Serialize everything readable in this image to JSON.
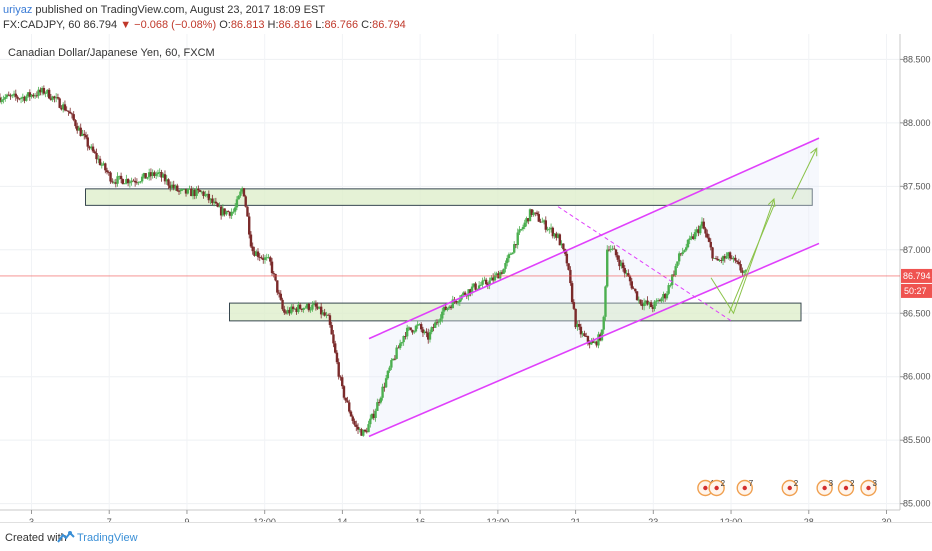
{
  "header": {
    "author": "uriyaz",
    "published_text": "published on TradingView.com, August 23, 2017 18:09 EST",
    "symbol": "FX:CADJPY, 60",
    "last": "86.794",
    "change": "▼ −0.068 (−0.08%)",
    "o_label": "O:",
    "o": "86.813",
    "h_label": "H:",
    "h": "86.816",
    "l_label": "L:",
    "l": "86.766",
    "c_label": "C:",
    "c": "86.794"
  },
  "footer": {
    "created_with": "Created with",
    "brand": "TradingView"
  },
  "colors": {
    "up": "#4caf50",
    "down": "#7a2a2a",
    "channel": "#e040fb",
    "zone_fill": "#dcedc8",
    "zone_stroke": "#37474f",
    "arrow": "#8bc34a",
    "price_tag": "#ef5350"
  },
  "chart_data": {
    "type": "candlestick",
    "title": "Canadian Dollar/Japanese Yen, 60, FXCM",
    "ylim": [
      84.95,
      88.7
    ],
    "y_ticks": [
      "85.000",
      "85.500",
      "86.000",
      "86.500",
      "87.000",
      "87.500",
      "88.000",
      "88.500"
    ],
    "x_ticks": [
      "3",
      "7",
      "9",
      "12:00",
      "14",
      "16",
      "12:00",
      "21",
      "23",
      "12:00",
      "28",
      "30"
    ],
    "last_price": "86.794",
    "countdown": "50:27",
    "price_path": [
      [
        0.0,
        88.2
      ],
      [
        1.0,
        88.2
      ],
      [
        2.0,
        88.25
      ],
      [
        3.0,
        88.1
      ],
      [
        4.0,
        87.8
      ],
      [
        5.0,
        87.55
      ],
      [
        6.0,
        87.55
      ],
      [
        7.0,
        87.6
      ],
      [
        8.0,
        87.45
      ],
      [
        9.0,
        87.45
      ],
      [
        9.8,
        87.3
      ],
      [
        10.4,
        87.3
      ],
      [
        10.8,
        87.5
      ],
      [
        11.2,
        87.0
      ],
      [
        12.0,
        86.9
      ],
      [
        12.6,
        86.5
      ],
      [
        13.4,
        86.55
      ],
      [
        14.0,
        86.55
      ],
      [
        14.6,
        86.45
      ],
      [
        15.2,
        85.9
      ],
      [
        15.8,
        85.6
      ],
      [
        16.2,
        85.55
      ],
      [
        16.6,
        85.7
      ],
      [
        17.4,
        86.1
      ],
      [
        18.0,
        86.35
      ],
      [
        18.6,
        86.4
      ],
      [
        19.0,
        86.3
      ],
      [
        19.6,
        86.5
      ],
      [
        20.2,
        86.6
      ],
      [
        21.0,
        86.7
      ],
      [
        21.8,
        86.75
      ],
      [
        22.4,
        86.85
      ],
      [
        23.0,
        87.1
      ],
      [
        23.6,
        87.3
      ],
      [
        24.2,
        87.2
      ],
      [
        24.8,
        87.1
      ],
      [
        25.2,
        86.9
      ],
      [
        25.6,
        86.4
      ],
      [
        26.0,
        86.3
      ],
      [
        26.4,
        86.25
      ],
      [
        26.8,
        86.35
      ],
      [
        27.0,
        87.05
      ],
      [
        27.4,
        86.95
      ],
      [
        28.0,
        86.75
      ],
      [
        28.4,
        86.6
      ],
      [
        29.0,
        86.55
      ],
      [
        29.6,
        86.65
      ],
      [
        30.2,
        86.95
      ],
      [
        30.8,
        87.1
      ],
      [
        31.2,
        87.2
      ],
      [
        31.8,
        86.9
      ],
      [
        32.4,
        86.95
      ],
      [
        32.9,
        86.85
      ],
      [
        33.2,
        86.8
      ]
    ],
    "channel_upper": [
      [
        16.4,
        86.3
      ],
      [
        36.4,
        87.88
      ]
    ],
    "channel_lower": [
      [
        16.4,
        85.53
      ],
      [
        36.4,
        87.05
      ]
    ],
    "dashed_line": [
      [
        24.8,
        87.34
      ],
      [
        32.5,
        86.44
      ]
    ],
    "zones": [
      {
        "from": 3.8,
        "to": 36.1,
        "low": 87.35,
        "high": 87.48
      },
      {
        "from": 10.2,
        "to": 35.6,
        "low": 86.44,
        "high": 86.58
      }
    ],
    "arrows": [
      {
        "path": [
          [
            31.6,
            86.78
          ],
          [
            32.6,
            86.5
          ],
          [
            34.4,
            87.4
          ]
        ],
        "head": true
      },
      {
        "path": [
          [
            32.4,
            86.5
          ],
          [
            34.4,
            87.35
          ]
        ],
        "head": false
      },
      {
        "path": [
          [
            35.2,
            87.4
          ],
          [
            36.3,
            87.8
          ]
        ],
        "head": true
      }
    ],
    "events": [
      {
        "x": 31.35,
        "label": "4"
      },
      {
        "x": 31.85,
        "label": "2"
      },
      {
        "x": 33.1,
        "label": "7"
      },
      {
        "x": 35.1,
        "label": "2"
      },
      {
        "x": 36.65,
        "label": "3"
      },
      {
        "x": 37.6,
        "label": "2"
      },
      {
        "x": 38.6,
        "label": "3"
      }
    ]
  }
}
